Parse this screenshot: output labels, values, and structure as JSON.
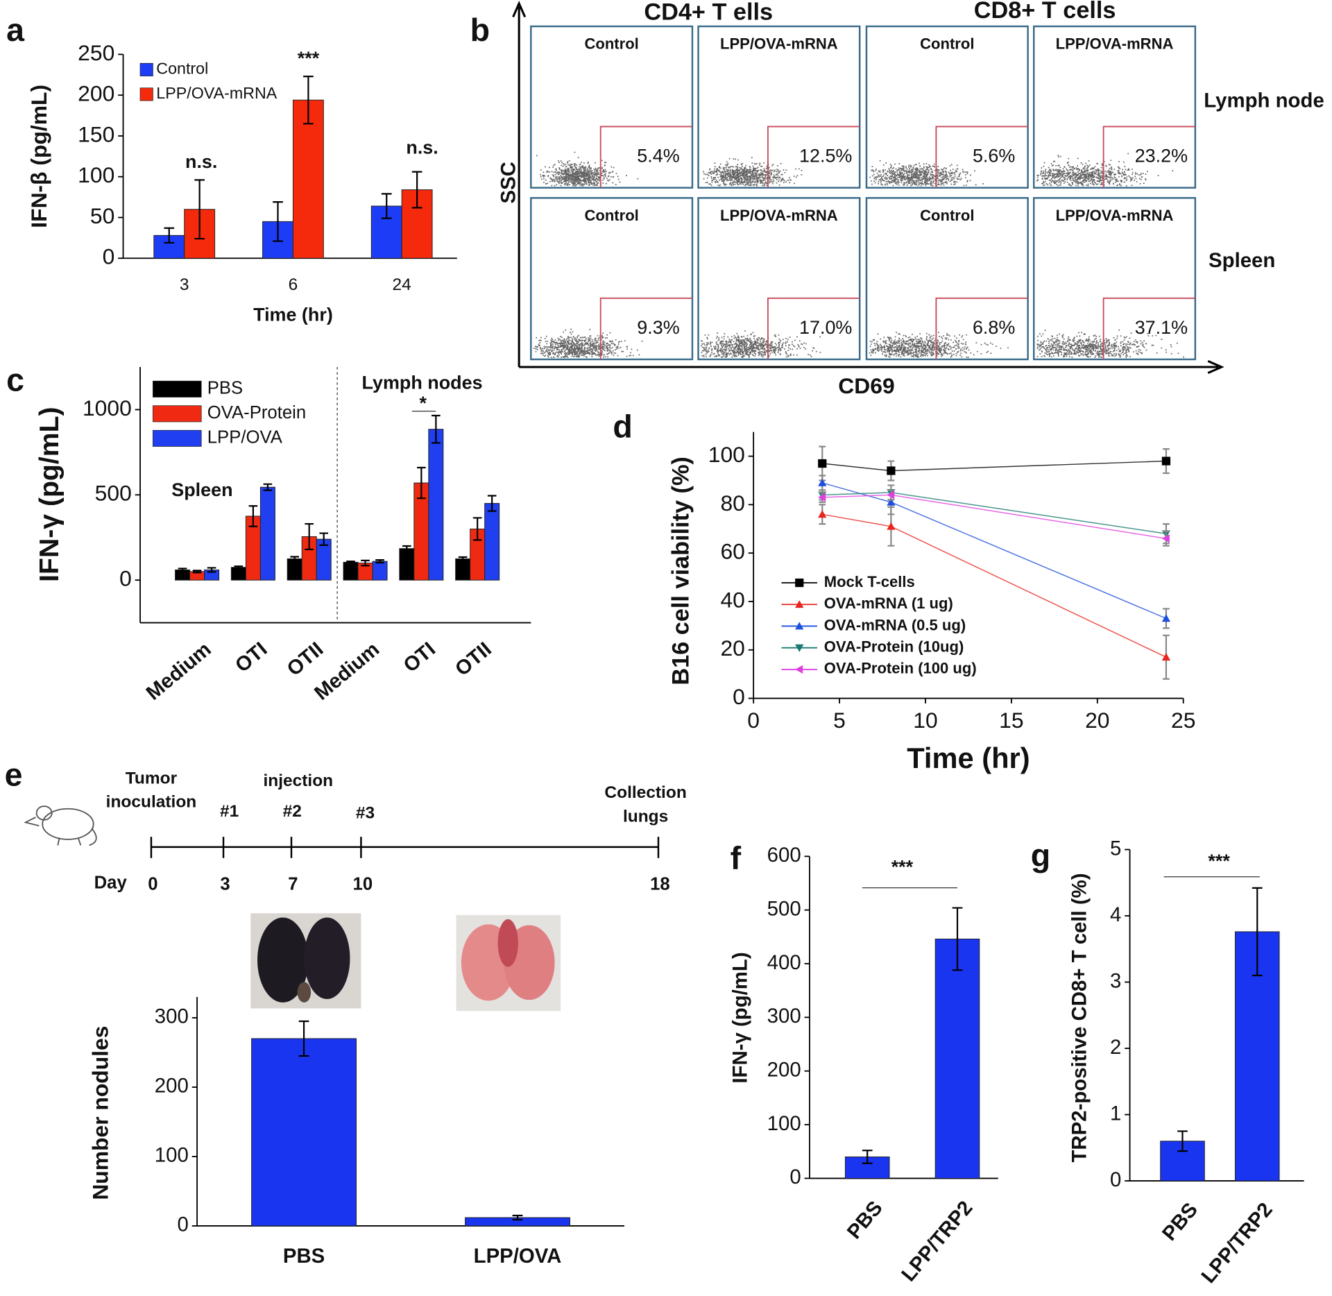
{
  "chart_data": [
    {
      "type": "bar",
      "panel_label": "a",
      "categories": [
        "3",
        "6",
        "24"
      ],
      "series": [
        {
          "name": "Control",
          "color": "#1d3cf5",
          "values": [
            28,
            45,
            64
          ],
          "errors": [
            9,
            24,
            15
          ]
        },
        {
          "name": "LPP/OVA-mRNA",
          "color": "#f52a0c",
          "values": [
            60,
            194,
            84
          ],
          "errors": [
            36,
            29,
            22
          ]
        }
      ],
      "ylim": [
        0,
        250
      ],
      "yticks": [
        0,
        50,
        100,
        150,
        200,
        250
      ],
      "ylabel": "IFN-β (pg/mL)",
      "xlabel": "Time (hr)",
      "annotations": [
        "n.s.",
        "***",
        "n.s."
      ],
      "legend": "upper left"
    },
    {
      "type": "bar",
      "panel_label": "c",
      "categories": [
        "Medium",
        "OTI",
        "OTII",
        "Medium",
        "OTI",
        "OTII"
      ],
      "series": [
        {
          "name": "PBS",
          "color": "#000000",
          "values": [
            60,
            75,
            125,
            105,
            185,
            125
          ],
          "errors": [
            8,
            6,
            12,
            5,
            15,
            10
          ]
        },
        {
          "name": "OVA-Protein",
          "color": "#f02a12",
          "values": [
            50,
            375,
            255,
            100,
            570,
            300
          ],
          "errors": [
            6,
            60,
            75,
            15,
            90,
            65
          ]
        },
        {
          "name": "LPP/OVA",
          "color": "#1f3ff0",
          "values": [
            60,
            545,
            240,
            110,
            885,
            450
          ],
          "errors": [
            12,
            18,
            35,
            8,
            80,
            45
          ]
        }
      ],
      "ylim": [
        -250,
        1250
      ],
      "yticks": [
        0,
        500,
        1000
      ],
      "ylabel": "IFN-γ (pg/mL)",
      "annotations": [
        "Spleen",
        "Lymph nodes",
        "*"
      ],
      "legend": "upper left"
    },
    {
      "type": "line",
      "panel_label": "d",
      "x": [
        4,
        8,
        24
      ],
      "series": [
        {
          "name": "Mock T-cells",
          "color": "#000000",
          "marker": "square",
          "values": [
            97,
            94,
            98
          ],
          "errors": [
            7,
            4,
            5
          ]
        },
        {
          "name": "OVA-mRNA (1 ug)",
          "color": "#e8251e",
          "marker": "triangle-up",
          "values": [
            76,
            71,
            17
          ],
          "errors": [
            4,
            8,
            9
          ]
        },
        {
          "name": "OVA-mRNA (0.5 ug)",
          "color": "#1f4fe0",
          "marker": "triangle-up",
          "values": [
            89,
            81,
            33
          ],
          "errors": [
            3,
            5,
            4
          ]
        },
        {
          "name": "OVA-Protein (10ug)",
          "color": "#1a7a72",
          "marker": "triangle-down",
          "values": [
            84,
            85,
            68
          ],
          "errors": [
            2,
            3,
            4
          ]
        },
        {
          "name": "OVA-Protein (100 ug)",
          "color": "#e040e0",
          "marker": "triangle-left",
          "values": [
            83,
            84,
            66
          ],
          "errors": [
            2,
            2,
            3
          ]
        }
      ],
      "xlim": [
        0,
        25
      ],
      "xticks": [
        0,
        5,
        10,
        15,
        20,
        25
      ],
      "ylim": [
        0,
        110
      ],
      "yticks": [
        0,
        20,
        40,
        60,
        80,
        100
      ],
      "xlabel": "Time (hr)",
      "ylabel": "B16 cell viability (%)",
      "legend": "lower left"
    },
    {
      "type": "bar",
      "categories": [
        "PBS",
        "LPP/OVA"
      ],
      "values": [
        270,
        12
      ],
      "errors": [
        25,
        3
      ],
      "color": "#1a35f0",
      "ylim": [
        0,
        330
      ],
      "yticks": [
        0,
        100,
        200,
        300
      ],
      "ylabel": "Number nodules"
    },
    {
      "type": "bar",
      "panel_label": "f",
      "categories": [
        "PBS",
        "LPP/TRP2"
      ],
      "values": [
        40,
        446
      ],
      "errors": [
        12,
        58
      ],
      "color": "#1a35f0",
      "ylim": [
        0,
        600
      ],
      "yticks": [
        0,
        100,
        200,
        300,
        400,
        500,
        600
      ],
      "ylabel": "IFN-γ (pg/mL)",
      "annotations": [
        "***"
      ]
    },
    {
      "type": "bar",
      "panel_label": "g",
      "categories": [
        "PBS",
        "LPP/TRP2"
      ],
      "values": [
        0.6,
        3.76
      ],
      "errors": [
        0.15,
        0.66
      ],
      "color": "#1a35f0",
      "ylim": [
        0,
        5
      ],
      "yticks": [
        0,
        1,
        2,
        3,
        4,
        5
      ],
      "ylabel": "TRP2-positive CD8+ T cell (%)",
      "annotations": [
        "***"
      ]
    }
  ],
  "flow_cytometry": {
    "panel_label": "b",
    "column_groups": [
      "CD4+ T ells",
      "CD8+ T cells"
    ],
    "y_axis": "SSC",
    "x_axis": "CD69",
    "rows": [
      {
        "label": "Lymph node",
        "panels": [
          {
            "title": "Control",
            "percent": "5.4%"
          },
          {
            "title": "LPP/OVA-mRNA",
            "percent": "12.5%"
          },
          {
            "title": "Control",
            "percent": "5.6%"
          },
          {
            "title": "LPP/OVA-mRNA",
            "percent": "23.2%"
          }
        ]
      },
      {
        "label": "Spleen",
        "panels": [
          {
            "title": "Control",
            "percent": "9.3%"
          },
          {
            "title": "LPP/OVA-mRNA",
            "percent": "17.0%"
          },
          {
            "title": "Control",
            "percent": "6.8%"
          },
          {
            "title": "LPP/OVA-mRNA",
            "percent": "37.1%"
          }
        ]
      }
    ]
  },
  "timeline": {
    "panel_label": "e",
    "day_label": "Day",
    "group_label": "injection",
    "events": [
      {
        "day": "0",
        "label": [
          "Tumor",
          "inoculation"
        ]
      },
      {
        "day": "3",
        "label": [
          "#1"
        ]
      },
      {
        "day": "7",
        "label": [
          "#2"
        ]
      },
      {
        "day": "10",
        "label": [
          "#3"
        ]
      },
      {
        "day": "18",
        "label": [
          "Collection",
          "lungs"
        ]
      }
    ]
  }
}
